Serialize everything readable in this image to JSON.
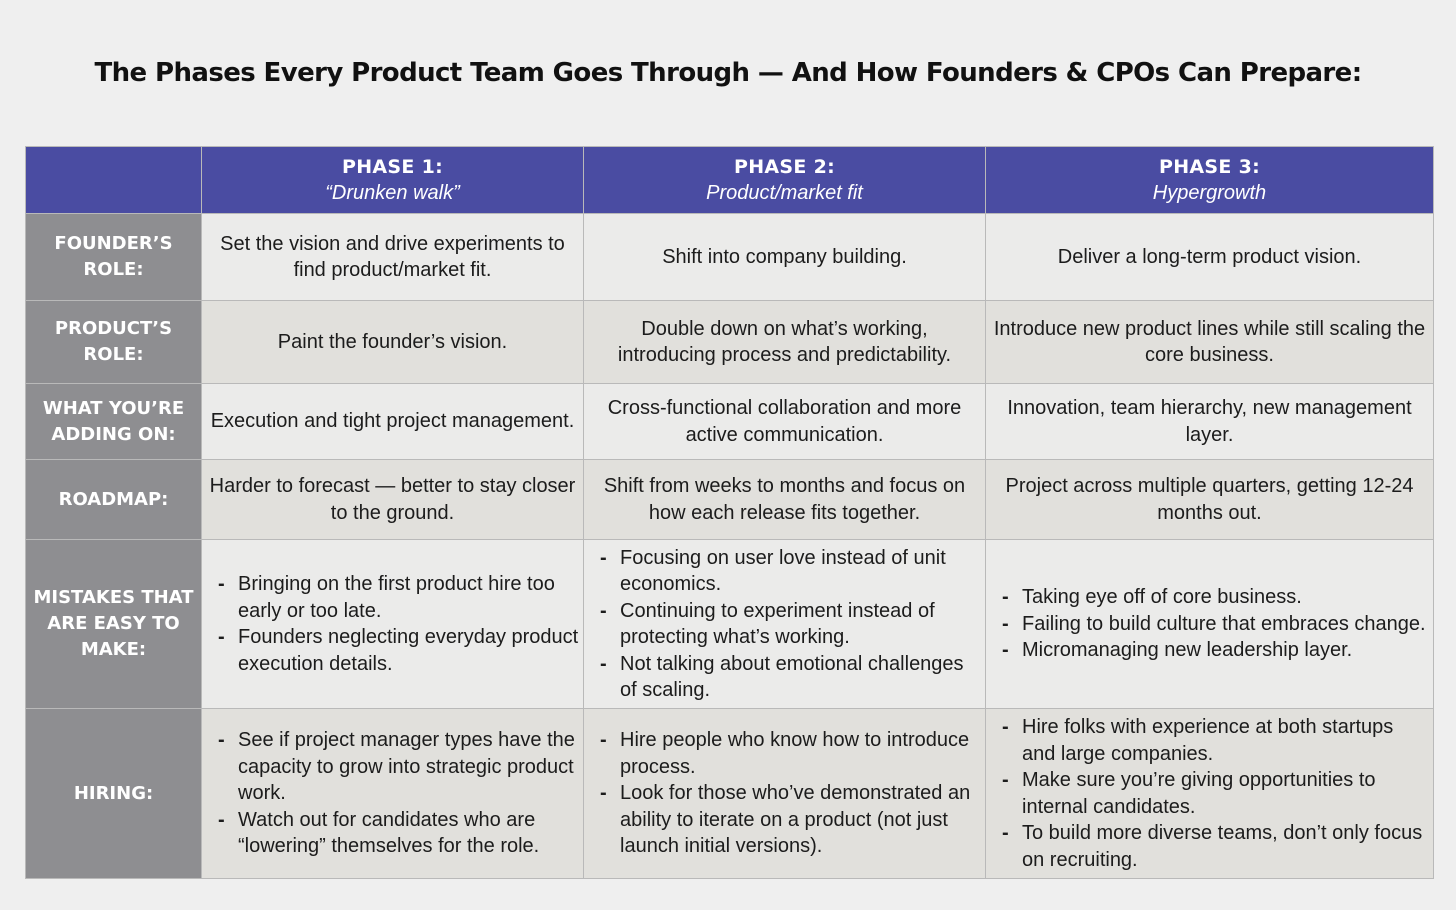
{
  "title": "The Phases Every Product Team Goes Through — And How Founders & CPOs Can Prepare:",
  "colors": {
    "header_bg": "#4a4ca2",
    "label_bg": "#8e8e91",
    "row_light": "#ebebea",
    "row_dark": "#e1e0dc",
    "page_bg": "#efefef"
  },
  "phases": [
    {
      "name": "PHASE 1:",
      "subtitle": "“Drunken walk”"
    },
    {
      "name": "PHASE 2:",
      "subtitle": "Product/market fit"
    },
    {
      "name": "PHASE 3:",
      "subtitle": "Hypergrowth"
    }
  ],
  "rows": [
    {
      "label": "FOUNDER’S ROLE:",
      "cells": [
        "Set the vision and drive experiments to find product/market fit.",
        "Shift into company building.",
        "Deliver a long-term product vision."
      ]
    },
    {
      "label": "PRODUCT’S ROLE:",
      "cells": [
        "Paint the founder’s vision.",
        "Double down on what’s working, introducing process and predictability.",
        "Introduce new product lines while still scaling the core business."
      ]
    },
    {
      "label": "WHAT YOU’RE ADDING ON:",
      "cells": [
        "Execution and tight project management.",
        "Cross-functional collaboration and more active communication.",
        "Innovation, team hierarchy, new management layer."
      ]
    },
    {
      "label": "ROADMAP:",
      "cells": [
        "Harder to forecast — better to stay closer to the ground.",
        "Shift from weeks to months and focus on how each release fits together.",
        "Project across multiple quarters, getting 12-24 months out."
      ]
    },
    {
      "label": "MISTAKES THAT ARE EASY TO MAKE:",
      "lists": [
        [
          "Bringing on the first product hire too early or too late.",
          "Founders neglecting everyday product execution details."
        ],
        [
          "Focusing on user love instead of unit economics.",
          "Continuing to experiment instead of protecting what’s working.",
          "Not talking about emotional challenges of scaling."
        ],
        [
          "Taking eye off of core business.",
          "Failing to build culture that embraces change.",
          "Micromanaging new leadership layer."
        ]
      ]
    },
    {
      "label": "HIRING:",
      "lists": [
        [
          "See if project manager types have the capacity to grow into strategic product work.",
          "Watch out for candidates who are “lowering” themselves for the role."
        ],
        [
          "Hire people who know how to introduce process.",
          "Look for those who’ve demonstrated an ability to iterate on a product (not just launch initial versions)."
        ],
        [
          "Hire folks with experience at both startups and large companies.",
          "Make sure you’re giving opportunities to internal candidates.",
          "To build more diverse teams, don’t only focus on recruiting."
        ]
      ]
    }
  ]
}
